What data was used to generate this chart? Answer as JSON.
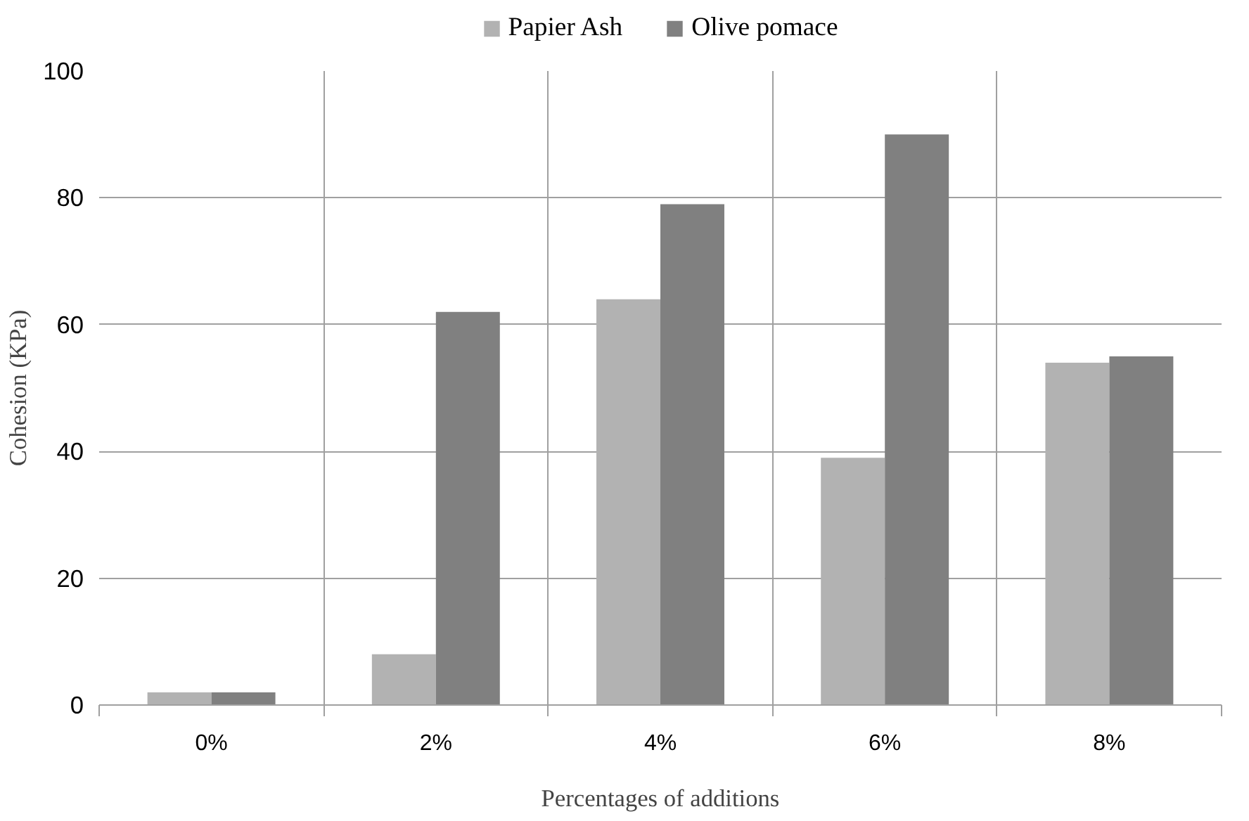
{
  "chart_data": {
    "type": "bar",
    "xlabel": "Percentages of additions",
    "ylabel": "Cohesion (KPa)",
    "categories": [
      "0%",
      "2%",
      "4%",
      "6%",
      "8%"
    ],
    "series": [
      {
        "name": "Papier Ash",
        "color": "#b2b2b2",
        "values": [
          2,
          8,
          64,
          39,
          54
        ]
      },
      {
        "name": "Olive pomace",
        "color": "#808080",
        "values": [
          2,
          62,
          79,
          90,
          55
        ]
      }
    ],
    "ylim": [
      0,
      100
    ],
    "yticks": [
      0,
      20,
      40,
      60,
      80,
      100
    ],
    "grid": true,
    "legend": "top"
  }
}
